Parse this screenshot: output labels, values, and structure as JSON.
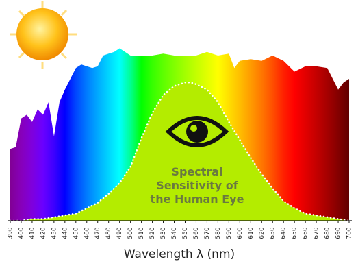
{
  "chart_data": {
    "type": "area",
    "x_label": "Wavelength λ (nm)",
    "annotation": [
      "Spectral",
      "Sensitivity of",
      "the Human Eye"
    ],
    "xlim": [
      390,
      700
    ],
    "ylim": [
      0,
      100
    ],
    "xticks": [
      390,
      400,
      410,
      420,
      430,
      440,
      450,
      460,
      470,
      480,
      490,
      500,
      510,
      520,
      530,
      540,
      550,
      560,
      570,
      580,
      590,
      600,
      610,
      620,
      630,
      640,
      650,
      660,
      670,
      680,
      690,
      700
    ],
    "series": [
      {
        "x": [
          390,
          395,
          400,
          405,
          410,
          415,
          420,
          425,
          430,
          435,
          440,
          445,
          450,
          455,
          460,
          465,
          470,
          475,
          480,
          485,
          490,
          495,
          500,
          510,
          520,
          530,
          540,
          550,
          560,
          570,
          580,
          590,
          595,
          600,
          610,
          620,
          630,
          640,
          650,
          660,
          670,
          680,
          690,
          695,
          700
        ],
        "values": [
          40,
          41,
          57,
          59,
          55,
          62,
          59,
          66,
          47,
          66,
          73,
          79,
          85,
          87,
          86,
          85,
          86,
          92,
          93,
          94,
          96,
          94,
          92,
          92,
          92,
          93,
          92,
          92,
          92,
          94,
          92,
          93,
          85,
          89,
          90,
          89,
          92,
          89,
          83,
          86,
          86,
          85,
          73,
          77,
          79
        ]
      },
      {
        "color": "#b4ec00",
        "x": [
          390,
          400,
          410,
          420,
          430,
          440,
          450,
          460,
          470,
          480,
          490,
          500,
          510,
          520,
          530,
          540,
          550,
          555,
          560,
          570,
          580,
          590,
          600,
          610,
          620,
          630,
          640,
          650,
          660,
          670,
          680,
          690,
          700
        ],
        "values": [
          0,
          0,
          1,
          1,
          2,
          3,
          4,
          7,
          10,
          15,
          21,
          30,
          46,
          60,
          70,
          75,
          77,
          77,
          76,
          73,
          66,
          55,
          45,
          35,
          26,
          18,
          11,
          7,
          4,
          3,
          2,
          1,
          0
        ]
      }
    ]
  }
}
